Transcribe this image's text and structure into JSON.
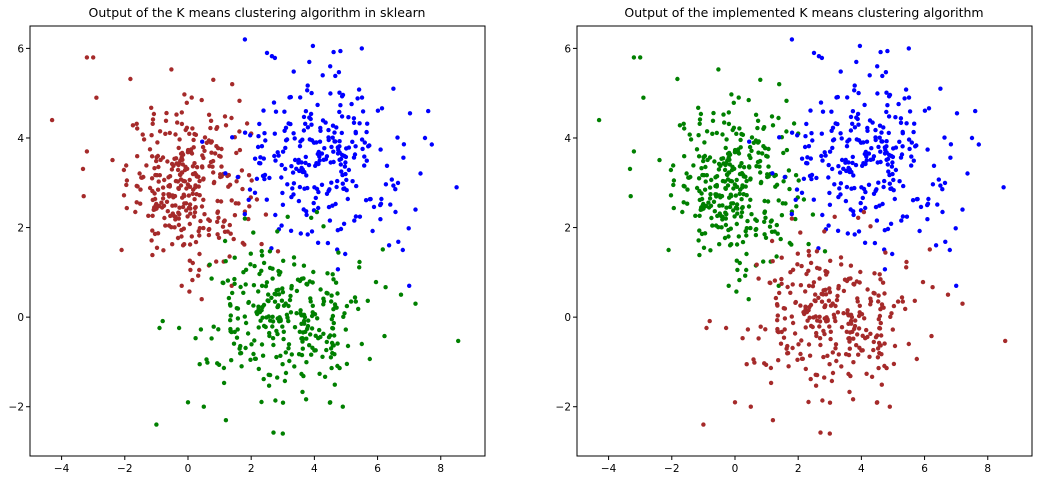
{
  "chart_data": [
    {
      "type": "scatter",
      "title": "Output of the K means clustering algorithm in sklearn",
      "xlabel": "",
      "ylabel": "",
      "xlim": [
        -5,
        9.4
      ],
      "ylim": [
        -3.1,
        6.5
      ],
      "xticks": [
        -4,
        -2,
        0,
        2,
        4,
        6,
        8
      ],
      "yticks": [
        -2,
        0,
        2,
        4,
        6
      ],
      "grid": false,
      "legend": "none",
      "series": [
        {
          "color": "#a52a2a",
          "cluster": "upper-left",
          "center": [
            0.0,
            3.0
          ],
          "spread": [
            0.95,
            0.85
          ],
          "n": 330,
          "outliers": [
            [
              -4.3,
              4.4
            ],
            [
              -3.2,
              5.8
            ],
            [
              -3.0,
              5.8
            ],
            [
              -3.3,
              2.7
            ],
            [
              -2.9,
              4.9
            ],
            [
              -2.1,
              1.5
            ],
            [
              -0.2,
              0.7
            ],
            [
              0.8,
              5.3
            ],
            [
              1.4,
              5.2
            ],
            [
              -3.2,
              3.7
            ]
          ]
        },
        {
          "color": "#0000ff",
          "cluster": "upper-right",
          "center": [
            4.3,
            3.6
          ],
          "spread": [
            1.25,
            0.95
          ],
          "n": 270,
          "outliers": [
            [
              1.8,
              6.2
            ],
            [
              2.5,
              5.9
            ],
            [
              5.5,
              6.0
            ],
            [
              8.5,
              2.9
            ],
            [
              7.5,
              4.0
            ],
            [
              7.2,
              2.4
            ],
            [
              7.0,
              0.7
            ],
            [
              6.8,
              1.5
            ],
            [
              4.5,
              5.6
            ],
            [
              6.5,
              5.1
            ]
          ]
        },
        {
          "color": "#008000",
          "cluster": "lower",
          "center": [
            3.0,
            0.0
          ],
          "spread": [
            1.25,
            0.85
          ],
          "n": 300,
          "outliers": [
            [
              3.0,
              -2.6
            ],
            [
              -1.0,
              -2.4
            ],
            [
              1.8,
              2.2
            ],
            [
              4.5,
              -1.9
            ],
            [
              0.0,
              -1.9
            ],
            [
              7.2,
              0.3
            ],
            [
              1.2,
              -2.3
            ],
            [
              4.9,
              -2.0
            ],
            [
              5.5,
              -0.6
            ],
            [
              0.5,
              -2.0
            ]
          ]
        }
      ]
    },
    {
      "type": "scatter",
      "title": "Output of the implemented K means clustering algorithm",
      "xlabel": "",
      "ylabel": "",
      "xlim": [
        -5,
        9.4
      ],
      "ylim": [
        -3.1,
        6.5
      ],
      "xticks": [
        -4,
        -2,
        0,
        2,
        4,
        6,
        8
      ],
      "yticks": [
        -2,
        0,
        2,
        4,
        6
      ],
      "grid": false,
      "legend": "none",
      "series": [
        {
          "color": "#008000",
          "cluster": "upper-left",
          "center": [
            0.0,
            3.0
          ],
          "spread": [
            0.95,
            0.85
          ],
          "n": 330,
          "outliers": [
            [
              -4.3,
              4.4
            ],
            [
              -3.2,
              5.8
            ],
            [
              -3.0,
              5.8
            ],
            [
              -3.3,
              2.7
            ],
            [
              -2.9,
              4.9
            ],
            [
              -2.1,
              1.5
            ],
            [
              -0.2,
              0.7
            ],
            [
              0.8,
              5.3
            ],
            [
              1.4,
              5.2
            ],
            [
              -3.2,
              3.7
            ]
          ]
        },
        {
          "color": "#0000ff",
          "cluster": "upper-right",
          "center": [
            4.3,
            3.6
          ],
          "spread": [
            1.25,
            0.95
          ],
          "n": 270,
          "outliers": [
            [
              1.8,
              6.2
            ],
            [
              2.5,
              5.9
            ],
            [
              5.5,
              6.0
            ],
            [
              8.5,
              2.9
            ],
            [
              7.5,
              4.0
            ],
            [
              7.2,
              2.4
            ],
            [
              7.0,
              0.7
            ],
            [
              6.8,
              1.5
            ],
            [
              4.5,
              5.6
            ],
            [
              6.5,
              5.1
            ]
          ]
        },
        {
          "color": "#a52a2a",
          "cluster": "lower",
          "center": [
            3.0,
            0.0
          ],
          "spread": [
            1.25,
            0.85
          ],
          "n": 300,
          "outliers": [
            [
              3.0,
              -2.6
            ],
            [
              -1.0,
              -2.4
            ],
            [
              1.8,
              2.2
            ],
            [
              4.5,
              -1.9
            ],
            [
              0.0,
              -1.9
            ],
            [
              7.2,
              0.3
            ],
            [
              1.2,
              -2.3
            ],
            [
              4.9,
              -2.0
            ],
            [
              5.5,
              -0.6
            ],
            [
              0.5,
              -2.0
            ]
          ]
        }
      ]
    }
  ]
}
